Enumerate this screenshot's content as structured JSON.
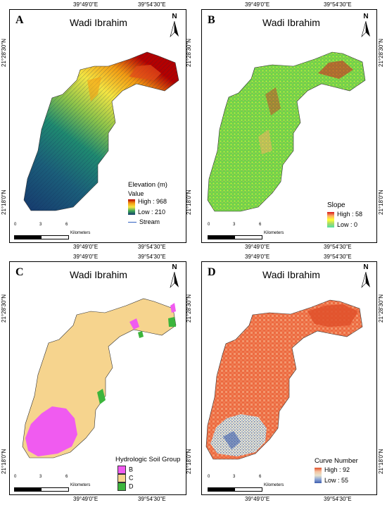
{
  "coords": {
    "lon_left": "39°49'0\"E",
    "lon_right": "39°54'30\"E",
    "lat_top": "21°28'30\"N",
    "lat_bottom": "21°18'0\"N"
  },
  "scale": {
    "zero": "0",
    "mid": "3",
    "max": "6",
    "unit": "Kilometers"
  },
  "north": "N",
  "panels": {
    "a": {
      "letter": "A",
      "title": "Wadi Ibrahim",
      "legend_title": "Elevation (m)",
      "value_label": "Value",
      "high": "High : 968",
      "low": "Low : 210",
      "stream": "Stream",
      "colors": [
        "#b40000",
        "#e34a1a",
        "#f39c12",
        "#f4e542",
        "#8bc34a",
        "#3aa655",
        "#1f8a70",
        "#1b5e7a",
        "#163a6e"
      ]
    },
    "b": {
      "letter": "B",
      "title": "Wadi Ibrahim",
      "legend_title": "Slope",
      "high": "High : 58",
      "low": "Low : 0",
      "colors": [
        "#d7191c",
        "#fdae61",
        "#ffff33",
        "#a6d96a",
        "#33cc33",
        "#52e0a0"
      ]
    },
    "c": {
      "letter": "C",
      "title": "Wadi Ibrahim",
      "legend_title": "Hydrologic Soil Group",
      "groups": [
        {
          "label": "B",
          "color": "#f05bf0"
        },
        {
          "label": "C",
          "color": "#f6d48e"
        },
        {
          "label": "D",
          "color": "#3cb53c"
        }
      ]
    },
    "d": {
      "letter": "D",
      "title": "Wadi Ibrahim",
      "legend_title": "Curve Number",
      "high": "High : 92",
      "low": "Low : 55",
      "colors": [
        "#e0502a",
        "#f07a50",
        "#f5c2a0",
        "#e9e3cc",
        "#8ea6d6",
        "#3e5fae"
      ]
    }
  }
}
